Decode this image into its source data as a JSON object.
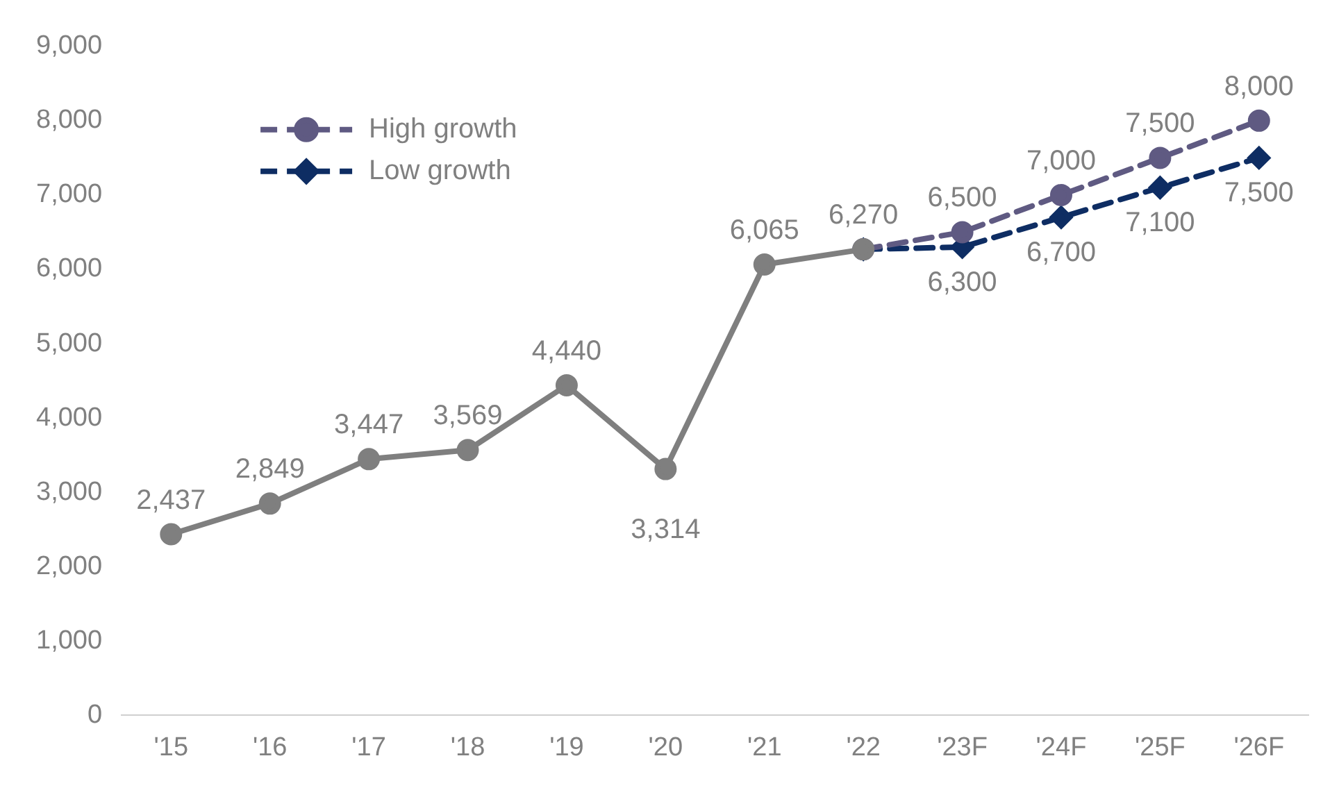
{
  "chart_data": {
    "type": "line",
    "categories": [
      "'15",
      "'16",
      "'17",
      "'18",
      "'19",
      "'20",
      "'21",
      "'22",
      "'23F",
      "'24F",
      "'25F",
      "'26F"
    ],
    "series": [
      {
        "color": "#7f7f7f",
        "marker": "circle",
        "line_style": "solid",
        "values": [
          2437,
          2849,
          3447,
          3569,
          4440,
          3314,
          6065,
          6270,
          null,
          null,
          null,
          null
        ],
        "value_labels": [
          "2,437",
          "2,849",
          "3,447",
          "3,569",
          "4,440",
          "3,314",
          "6,065",
          "6,270",
          null,
          null,
          null,
          null
        ]
      },
      {
        "name": "High growth",
        "color": "#5f5a82",
        "marker": "circle",
        "line_style": "dashed",
        "values": [
          null,
          null,
          null,
          null,
          null,
          null,
          null,
          6270,
          6500,
          7000,
          7500,
          8000
        ],
        "value_labels": [
          null,
          null,
          null,
          null,
          null,
          null,
          null,
          null,
          "6,500",
          "7,000",
          "7,500",
          "8,000"
        ]
      },
      {
        "name": "Low growth",
        "color": "#0e2d63",
        "marker": "diamond",
        "line_style": "dashed",
        "values": [
          null,
          null,
          null,
          null,
          null,
          null,
          null,
          6270,
          6300,
          6700,
          7100,
          7500
        ],
        "value_labels": [
          null,
          null,
          null,
          null,
          null,
          null,
          null,
          null,
          "6,300",
          "6,700",
          "7,100",
          "7,500"
        ]
      }
    ],
    "ylim": [
      0,
      9000
    ],
    "yticks": [
      {
        "value": 0,
        "label": "0"
      },
      {
        "value": 1000,
        "label": "1,000"
      },
      {
        "value": 2000,
        "label": "2,000"
      },
      {
        "value": 3000,
        "label": "3,000"
      },
      {
        "value": 4000,
        "label": "4,000"
      },
      {
        "value": 5000,
        "label": "5,000"
      },
      {
        "value": 6000,
        "label": "6,000"
      },
      {
        "value": 7000,
        "label": "7,000"
      },
      {
        "value": 8000,
        "label": "8,000"
      },
      {
        "value": 9000,
        "label": "9,000"
      }
    ],
    "grid": false,
    "legend": "top left"
  }
}
